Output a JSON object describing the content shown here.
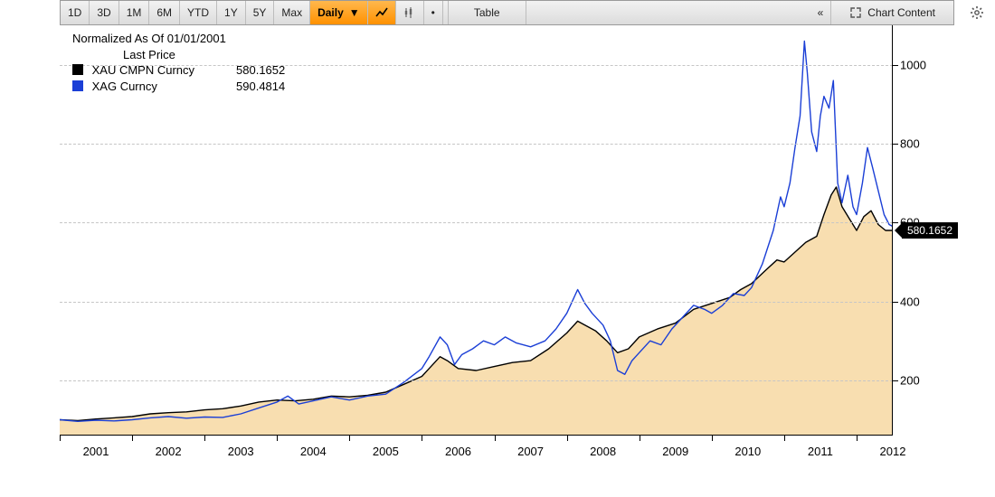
{
  "toolbar": {
    "ranges": [
      "1D",
      "3D",
      "1M",
      "6M",
      "YTD",
      "1Y",
      "5Y",
      "Max"
    ],
    "freq_label": "Daily",
    "freq_active": true,
    "table_label": "Table",
    "chart_content_label": "Chart Content",
    "collapse_glyph": "«"
  },
  "legend": {
    "title": "Normalized As Of 01/01/2001",
    "subtitle": "Last Price",
    "series": [
      {
        "name": "XAU CMPN Curncy",
        "value": "580.1652",
        "color": "#000000"
      },
      {
        "name": "XAG Curncy",
        "value": "590.4814",
        "color": "#1b3fd6"
      }
    ]
  },
  "chart": {
    "type": "line-area",
    "background_color": "#ffffff",
    "area_fill_color": "#f8deb0",
    "grid_color": "#c6c6c6",
    "grid_dash": "4 4",
    "axis_color": "#000000",
    "x": {
      "min": 2001.0,
      "max": 2012.5,
      "tick_start": 2001,
      "tick_end": 2012,
      "tick_step": 1,
      "label_fontsize": 13
    },
    "y": {
      "min": 60,
      "max": 1100,
      "ticks": [
        200,
        400,
        600,
        800,
        1000
      ],
      "label_fontsize": 13
    },
    "price_flag": {
      "value": "580.1652",
      "y": 580.1652,
      "bg": "#000000",
      "fg": "#ffffff"
    },
    "series": [
      {
        "id": "xau",
        "color": "#000000",
        "width": 1.4,
        "fill": true,
        "points": [
          [
            2001.0,
            100
          ],
          [
            2001.25,
            98
          ],
          [
            2001.5,
            102
          ],
          [
            2001.75,
            105
          ],
          [
            2002.0,
            108
          ],
          [
            2002.25,
            115
          ],
          [
            2002.5,
            118
          ],
          [
            2002.75,
            120
          ],
          [
            2003.0,
            125
          ],
          [
            2003.25,
            128
          ],
          [
            2003.5,
            135
          ],
          [
            2003.75,
            145
          ],
          [
            2004.0,
            150
          ],
          [
            2004.25,
            148
          ],
          [
            2004.5,
            152
          ],
          [
            2004.75,
            160
          ],
          [
            2005.0,
            158
          ],
          [
            2005.25,
            162
          ],
          [
            2005.5,
            170
          ],
          [
            2005.75,
            190
          ],
          [
            2006.0,
            210
          ],
          [
            2006.1,
            230
          ],
          [
            2006.25,
            260
          ],
          [
            2006.35,
            250
          ],
          [
            2006.5,
            230
          ],
          [
            2006.75,
            225
          ],
          [
            2007.0,
            235
          ],
          [
            2007.25,
            245
          ],
          [
            2007.5,
            250
          ],
          [
            2007.75,
            280
          ],
          [
            2008.0,
            320
          ],
          [
            2008.15,
            350
          ],
          [
            2008.25,
            340
          ],
          [
            2008.4,
            325
          ],
          [
            2008.55,
            300
          ],
          [
            2008.7,
            270
          ],
          [
            2008.85,
            280
          ],
          [
            2009.0,
            310
          ],
          [
            2009.25,
            330
          ],
          [
            2009.5,
            345
          ],
          [
            2009.75,
            380
          ],
          [
            2010.0,
            395
          ],
          [
            2010.25,
            410
          ],
          [
            2010.4,
            430
          ],
          [
            2010.55,
            445
          ],
          [
            2010.75,
            480
          ],
          [
            2010.9,
            505
          ],
          [
            2011.0,
            500
          ],
          [
            2011.15,
            525
          ],
          [
            2011.3,
            550
          ],
          [
            2011.45,
            565
          ],
          [
            2011.55,
            620
          ],
          [
            2011.65,
            670
          ],
          [
            2011.72,
            690
          ],
          [
            2011.8,
            640
          ],
          [
            2011.9,
            610
          ],
          [
            2012.0,
            580
          ],
          [
            2012.1,
            615
          ],
          [
            2012.2,
            630
          ],
          [
            2012.3,
            595
          ],
          [
            2012.4,
            580
          ],
          [
            2012.5,
            580
          ]
        ]
      },
      {
        "id": "xag",
        "color": "#1b3fd6",
        "width": 1.4,
        "fill": false,
        "points": [
          [
            2001.0,
            100
          ],
          [
            2001.25,
            96
          ],
          [
            2001.5,
            99
          ],
          [
            2001.75,
            97
          ],
          [
            2002.0,
            100
          ],
          [
            2002.25,
            105
          ],
          [
            2002.5,
            108
          ],
          [
            2002.75,
            104
          ],
          [
            2003.0,
            107
          ],
          [
            2003.25,
            106
          ],
          [
            2003.5,
            115
          ],
          [
            2003.75,
            130
          ],
          [
            2004.0,
            145
          ],
          [
            2004.15,
            160
          ],
          [
            2004.3,
            140
          ],
          [
            2004.5,
            148
          ],
          [
            2004.75,
            158
          ],
          [
            2005.0,
            150
          ],
          [
            2005.25,
            160
          ],
          [
            2005.5,
            165
          ],
          [
            2005.75,
            195
          ],
          [
            2006.0,
            230
          ],
          [
            2006.1,
            260
          ],
          [
            2006.25,
            310
          ],
          [
            2006.35,
            290
          ],
          [
            2006.45,
            240
          ],
          [
            2006.55,
            265
          ],
          [
            2006.7,
            280
          ],
          [
            2006.85,
            300
          ],
          [
            2007.0,
            290
          ],
          [
            2007.15,
            310
          ],
          [
            2007.3,
            295
          ],
          [
            2007.5,
            285
          ],
          [
            2007.7,
            300
          ],
          [
            2007.85,
            330
          ],
          [
            2008.0,
            370
          ],
          [
            2008.15,
            430
          ],
          [
            2008.25,
            395
          ],
          [
            2008.35,
            370
          ],
          [
            2008.5,
            340
          ],
          [
            2008.6,
            300
          ],
          [
            2008.7,
            225
          ],
          [
            2008.8,
            215
          ],
          [
            2008.9,
            250
          ],
          [
            2009.0,
            270
          ],
          [
            2009.15,
            300
          ],
          [
            2009.3,
            290
          ],
          [
            2009.45,
            330
          ],
          [
            2009.6,
            360
          ],
          [
            2009.75,
            390
          ],
          [
            2009.9,
            380
          ],
          [
            2010.0,
            370
          ],
          [
            2010.15,
            390
          ],
          [
            2010.3,
            420
          ],
          [
            2010.45,
            415
          ],
          [
            2010.55,
            435
          ],
          [
            2010.7,
            495
          ],
          [
            2010.85,
            580
          ],
          [
            2010.95,
            665
          ],
          [
            2011.0,
            640
          ],
          [
            2011.08,
            700
          ],
          [
            2011.15,
            790
          ],
          [
            2011.22,
            870
          ],
          [
            2011.28,
            1060
          ],
          [
            2011.32,
            980
          ],
          [
            2011.38,
            830
          ],
          [
            2011.45,
            780
          ],
          [
            2011.5,
            870
          ],
          [
            2011.55,
            920
          ],
          [
            2011.62,
            890
          ],
          [
            2011.68,
            960
          ],
          [
            2011.74,
            700
          ],
          [
            2011.8,
            650
          ],
          [
            2011.88,
            720
          ],
          [
            2011.95,
            640
          ],
          [
            2012.0,
            620
          ],
          [
            2012.08,
            700
          ],
          [
            2012.15,
            790
          ],
          [
            2012.22,
            740
          ],
          [
            2012.3,
            680
          ],
          [
            2012.38,
            620
          ],
          [
            2012.45,
            595
          ],
          [
            2012.5,
            590
          ]
        ]
      }
    ]
  }
}
